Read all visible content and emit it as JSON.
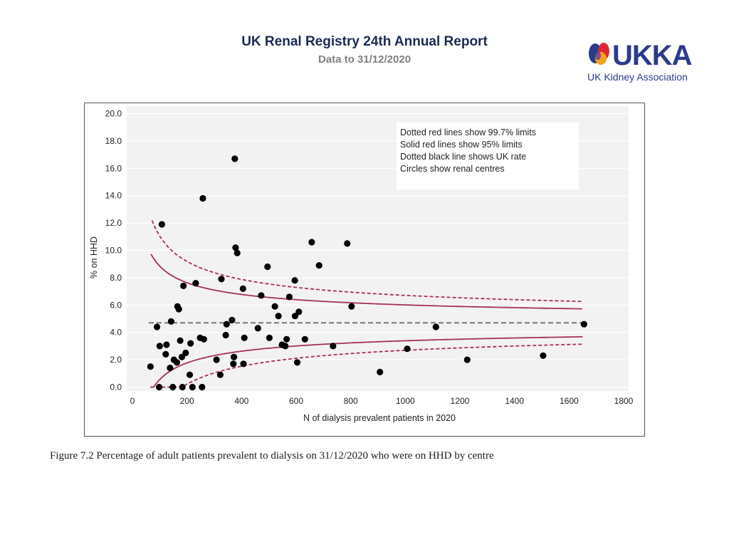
{
  "header": {
    "title": "UK Renal Registry 24th Annual Report",
    "subtitle": "Data to 31/12/2020"
  },
  "logo": {
    "text": "UKKA",
    "tagline": "UK Kidney Association",
    "colors": {
      "blue": "#2c3b8c",
      "red": "#e0262e",
      "orange": "#f3a21b",
      "purple": "#6b3a91"
    }
  },
  "caption": "Figure 7.2 Percentage of adult patients prevalent to dialysis on 31/12/2020 who were on HHD by centre",
  "chart_data": {
    "type": "scatter",
    "title": "",
    "xlabel": "N of dialysis prevalent patients in 2020",
    "ylabel": "% on HHD",
    "xlim": [
      0,
      1800
    ],
    "ylim": [
      0,
      20
    ],
    "xticks": [
      "0",
      "200",
      "400",
      "600",
      "800",
      "1000",
      "1200",
      "1400",
      "1600",
      "1800"
    ],
    "yticks": [
      "0.0",
      "2.0",
      "4.0",
      "6.0",
      "8.0",
      "10.0",
      "12.0",
      "14.0",
      "16.0",
      "18.0",
      "20.0"
    ],
    "grid": true,
    "legend_position": "top-right",
    "legend": [
      "Dotted red lines show 99.7% limits",
      "Solid red lines show 95% limits",
      "Dotted black line shows UK rate",
      "Circles show renal centres"
    ],
    "uk_rate": 4.7,
    "colors": {
      "limits": "#a5305a",
      "uk_rate": "#777777",
      "points": "#000000",
      "plot_bg": "#f2f2f2"
    },
    "points": [
      {
        "x": 66,
        "y": 1.5
      },
      {
        "x": 90,
        "y": 4.4
      },
      {
        "x": 98,
        "y": 0.0
      },
      {
        "x": 100,
        "y": 3.0
      },
      {
        "x": 108,
        "y": 11.9
      },
      {
        "x": 122,
        "y": 2.4
      },
      {
        "x": 125,
        "y": 3.1
      },
      {
        "x": 138,
        "y": 1.4
      },
      {
        "x": 142,
        "y": 4.8
      },
      {
        "x": 148,
        "y": 0.0
      },
      {
        "x": 152,
        "y": 2.0
      },
      {
        "x": 163,
        "y": 1.8
      },
      {
        "x": 165,
        "y": 5.9
      },
      {
        "x": 170,
        "y": 5.7
      },
      {
        "x": 175,
        "y": 3.4
      },
      {
        "x": 181,
        "y": 2.2
      },
      {
        "x": 183,
        "y": 0.0
      },
      {
        "x": 187,
        "y": 7.4
      },
      {
        "x": 195,
        "y": 2.5
      },
      {
        "x": 210,
        "y": 0.9
      },
      {
        "x": 213,
        "y": 3.2
      },
      {
        "x": 220,
        "y": 0.0
      },
      {
        "x": 232,
        "y": 7.6
      },
      {
        "x": 248,
        "y": 3.6
      },
      {
        "x": 255,
        "y": 0.0
      },
      {
        "x": 258,
        "y": 13.8
      },
      {
        "x": 262,
        "y": 3.5
      },
      {
        "x": 308,
        "y": 2.0
      },
      {
        "x": 322,
        "y": 0.9
      },
      {
        "x": 326,
        "y": 7.9
      },
      {
        "x": 342,
        "y": 3.8
      },
      {
        "x": 345,
        "y": 4.6
      },
      {
        "x": 365,
        "y": 4.9
      },
      {
        "x": 370,
        "y": 1.7
      },
      {
        "x": 372,
        "y": 2.2
      },
      {
        "x": 375,
        "y": 16.7
      },
      {
        "x": 378,
        "y": 10.2
      },
      {
        "x": 384,
        "y": 9.8
      },
      {
        "x": 405,
        "y": 7.2
      },
      {
        "x": 407,
        "y": 1.7
      },
      {
        "x": 410,
        "y": 3.6
      },
      {
        "x": 460,
        "y": 4.3
      },
      {
        "x": 472,
        "y": 6.7
      },
      {
        "x": 495,
        "y": 8.8
      },
      {
        "x": 502,
        "y": 3.6
      },
      {
        "x": 522,
        "y": 5.9
      },
      {
        "x": 535,
        "y": 5.2
      },
      {
        "x": 548,
        "y": 3.1
      },
      {
        "x": 560,
        "y": 3.0
      },
      {
        "x": 565,
        "y": 3.5
      },
      {
        "x": 575,
        "y": 6.6
      },
      {
        "x": 595,
        "y": 7.8
      },
      {
        "x": 596,
        "y": 5.2
      },
      {
        "x": 604,
        "y": 1.8
      },
      {
        "x": 610,
        "y": 5.5
      },
      {
        "x": 632,
        "y": 3.5
      },
      {
        "x": 657,
        "y": 10.6
      },
      {
        "x": 684,
        "y": 8.9
      },
      {
        "x": 735,
        "y": 3.0
      },
      {
        "x": 787,
        "y": 10.5
      },
      {
        "x": 803,
        "y": 5.9
      },
      {
        "x": 907,
        "y": 1.1
      },
      {
        "x": 1007,
        "y": 2.8
      },
      {
        "x": 1112,
        "y": 4.4
      },
      {
        "x": 1227,
        "y": 2.0
      },
      {
        "x": 1505,
        "y": 2.3
      },
      {
        "x": 1655,
        "y": 4.6
      }
    ],
    "limits": {
      "p = 0.047": "UK rate",
      "z95": 1.96,
      "z997": 3.0
    }
  }
}
